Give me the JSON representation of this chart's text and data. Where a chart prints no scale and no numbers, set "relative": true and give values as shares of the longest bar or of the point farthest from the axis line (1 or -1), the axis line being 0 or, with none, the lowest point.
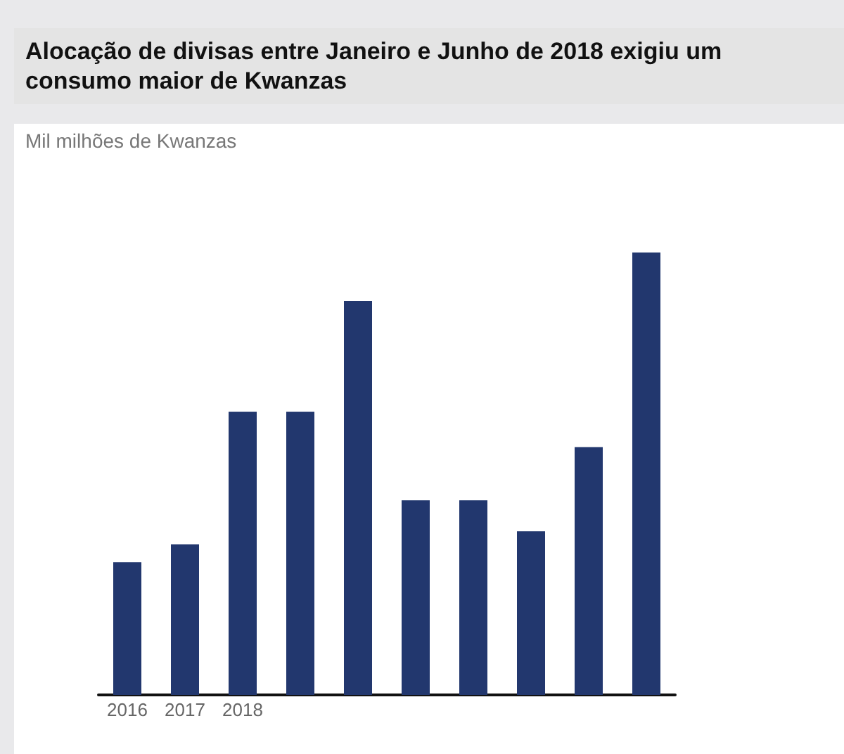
{
  "chart_data": {
    "type": "bar",
    "title": "Alocação de divisas entre Janeiro e Junho de 2018 exigiu um consumo maior de Kwanzas",
    "subtitle": "Mil milhões de Kwanzas",
    "categories": [
      "2016",
      "2017",
      "2018",
      null,
      null,
      null,
      null,
      null,
      null,
      null
    ],
    "values": [
      0.3,
      0.34,
      0.64,
      0.64,
      0.89,
      0.44,
      0.44,
      0.37,
      0.56,
      1
    ],
    "color": "#22376e",
    "relative": true
  }
}
